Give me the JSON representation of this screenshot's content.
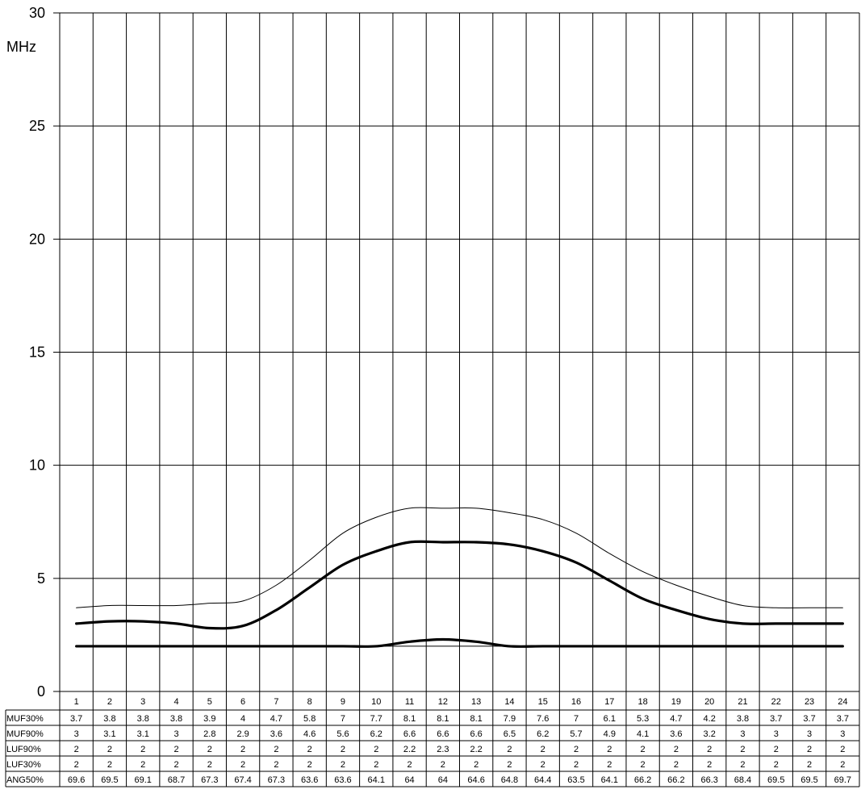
{
  "chart_data": {
    "type": "line",
    "ylabel": "MHz",
    "ylim": [
      0,
      30
    ],
    "yticks": [
      "0",
      "5",
      "10",
      "15",
      "20",
      "25",
      "30"
    ],
    "grid": true,
    "categories": [
      "1",
      "2",
      "3",
      "4",
      "5",
      "6",
      "7",
      "8",
      "9",
      "10",
      "11",
      "12",
      "13",
      "14",
      "15",
      "16",
      "17",
      "18",
      "19",
      "20",
      "21",
      "22",
      "23",
      "24"
    ],
    "series": [
      {
        "name": "MUF30%",
        "stroke": "thin",
        "color": "#000000",
        "values": [
          3.7,
          3.8,
          3.8,
          3.8,
          3.9,
          4,
          4.7,
          5.8,
          7,
          7.7,
          8.1,
          8.1,
          8.1,
          7.9,
          7.6,
          7,
          6.1,
          5.3,
          4.7,
          4.2,
          3.8,
          3.7,
          3.7,
          3.7
        ]
      },
      {
        "name": "MUF90%",
        "stroke": "thick",
        "color": "#000000",
        "values": [
          3,
          3.1,
          3.1,
          3,
          2.8,
          2.9,
          3.6,
          4.6,
          5.6,
          6.2,
          6.6,
          6.6,
          6.6,
          6.5,
          6.2,
          5.7,
          4.9,
          4.1,
          3.6,
          3.2,
          3,
          3,
          3,
          3
        ]
      },
      {
        "name": "LUF90%",
        "stroke": "thick",
        "color": "#000000",
        "values": [
          2,
          2,
          2,
          2,
          2,
          2,
          2,
          2,
          2,
          2,
          2.2,
          2.3,
          2.2,
          2,
          2,
          2,
          2,
          2,
          2,
          2,
          2,
          2,
          2,
          2
        ]
      },
      {
        "name": "LUF30%",
        "stroke": "thin",
        "color": "#000000",
        "values": [
          2,
          2,
          2,
          2,
          2,
          2,
          2,
          2,
          2,
          2,
          2,
          2,
          2,
          2,
          2,
          2,
          2,
          2,
          2,
          2,
          2,
          2,
          2,
          2
        ]
      }
    ],
    "table_rows": [
      {
        "label": "MUF30%",
        "values": [
          "3.7",
          "3.8",
          "3.8",
          "3.8",
          "3.9",
          "4",
          "4.7",
          "5.8",
          "7",
          "7.7",
          "8.1",
          "8.1",
          "8.1",
          "7.9",
          "7.6",
          "7",
          "6.1",
          "5.3",
          "4.7",
          "4.2",
          "3.8",
          "3.7",
          "3.7",
          "3.7"
        ]
      },
      {
        "label": "MUF90%",
        "values": [
          "3",
          "3.1",
          "3.1",
          "3",
          "2.8",
          "2.9",
          "3.6",
          "4.6",
          "5.6",
          "6.2",
          "6.6",
          "6.6",
          "6.6",
          "6.5",
          "6.2",
          "5.7",
          "4.9",
          "4.1",
          "3.6",
          "3.2",
          "3",
          "3",
          "3",
          "3"
        ]
      },
      {
        "label": "LUF90%",
        "values": [
          "2",
          "2",
          "2",
          "2",
          "2",
          "2",
          "2",
          "2",
          "2",
          "2",
          "2.2",
          "2.3",
          "2.2",
          "2",
          "2",
          "2",
          "2",
          "2",
          "2",
          "2",
          "2",
          "2",
          "2",
          "2"
        ]
      },
      {
        "label": "LUF30%",
        "values": [
          "2",
          "2",
          "2",
          "2",
          "2",
          "2",
          "2",
          "2",
          "2",
          "2",
          "2",
          "2",
          "2",
          "2",
          "2",
          "2",
          "2",
          "2",
          "2",
          "2",
          "2",
          "2",
          "2",
          "2"
        ]
      },
      {
        "label": "ANG50%",
        "values": [
          "69.6",
          "69.5",
          "69.1",
          "68.7",
          "67.3",
          "67.4",
          "67.3",
          "63.6",
          "63.6",
          "64.1",
          "64",
          "64",
          "64.6",
          "64.8",
          "64.4",
          "63.5",
          "64.1",
          "66.2",
          "66.2",
          "66.3",
          "68.4",
          "69.5",
          "69.5",
          "69.7"
        ]
      }
    ]
  }
}
